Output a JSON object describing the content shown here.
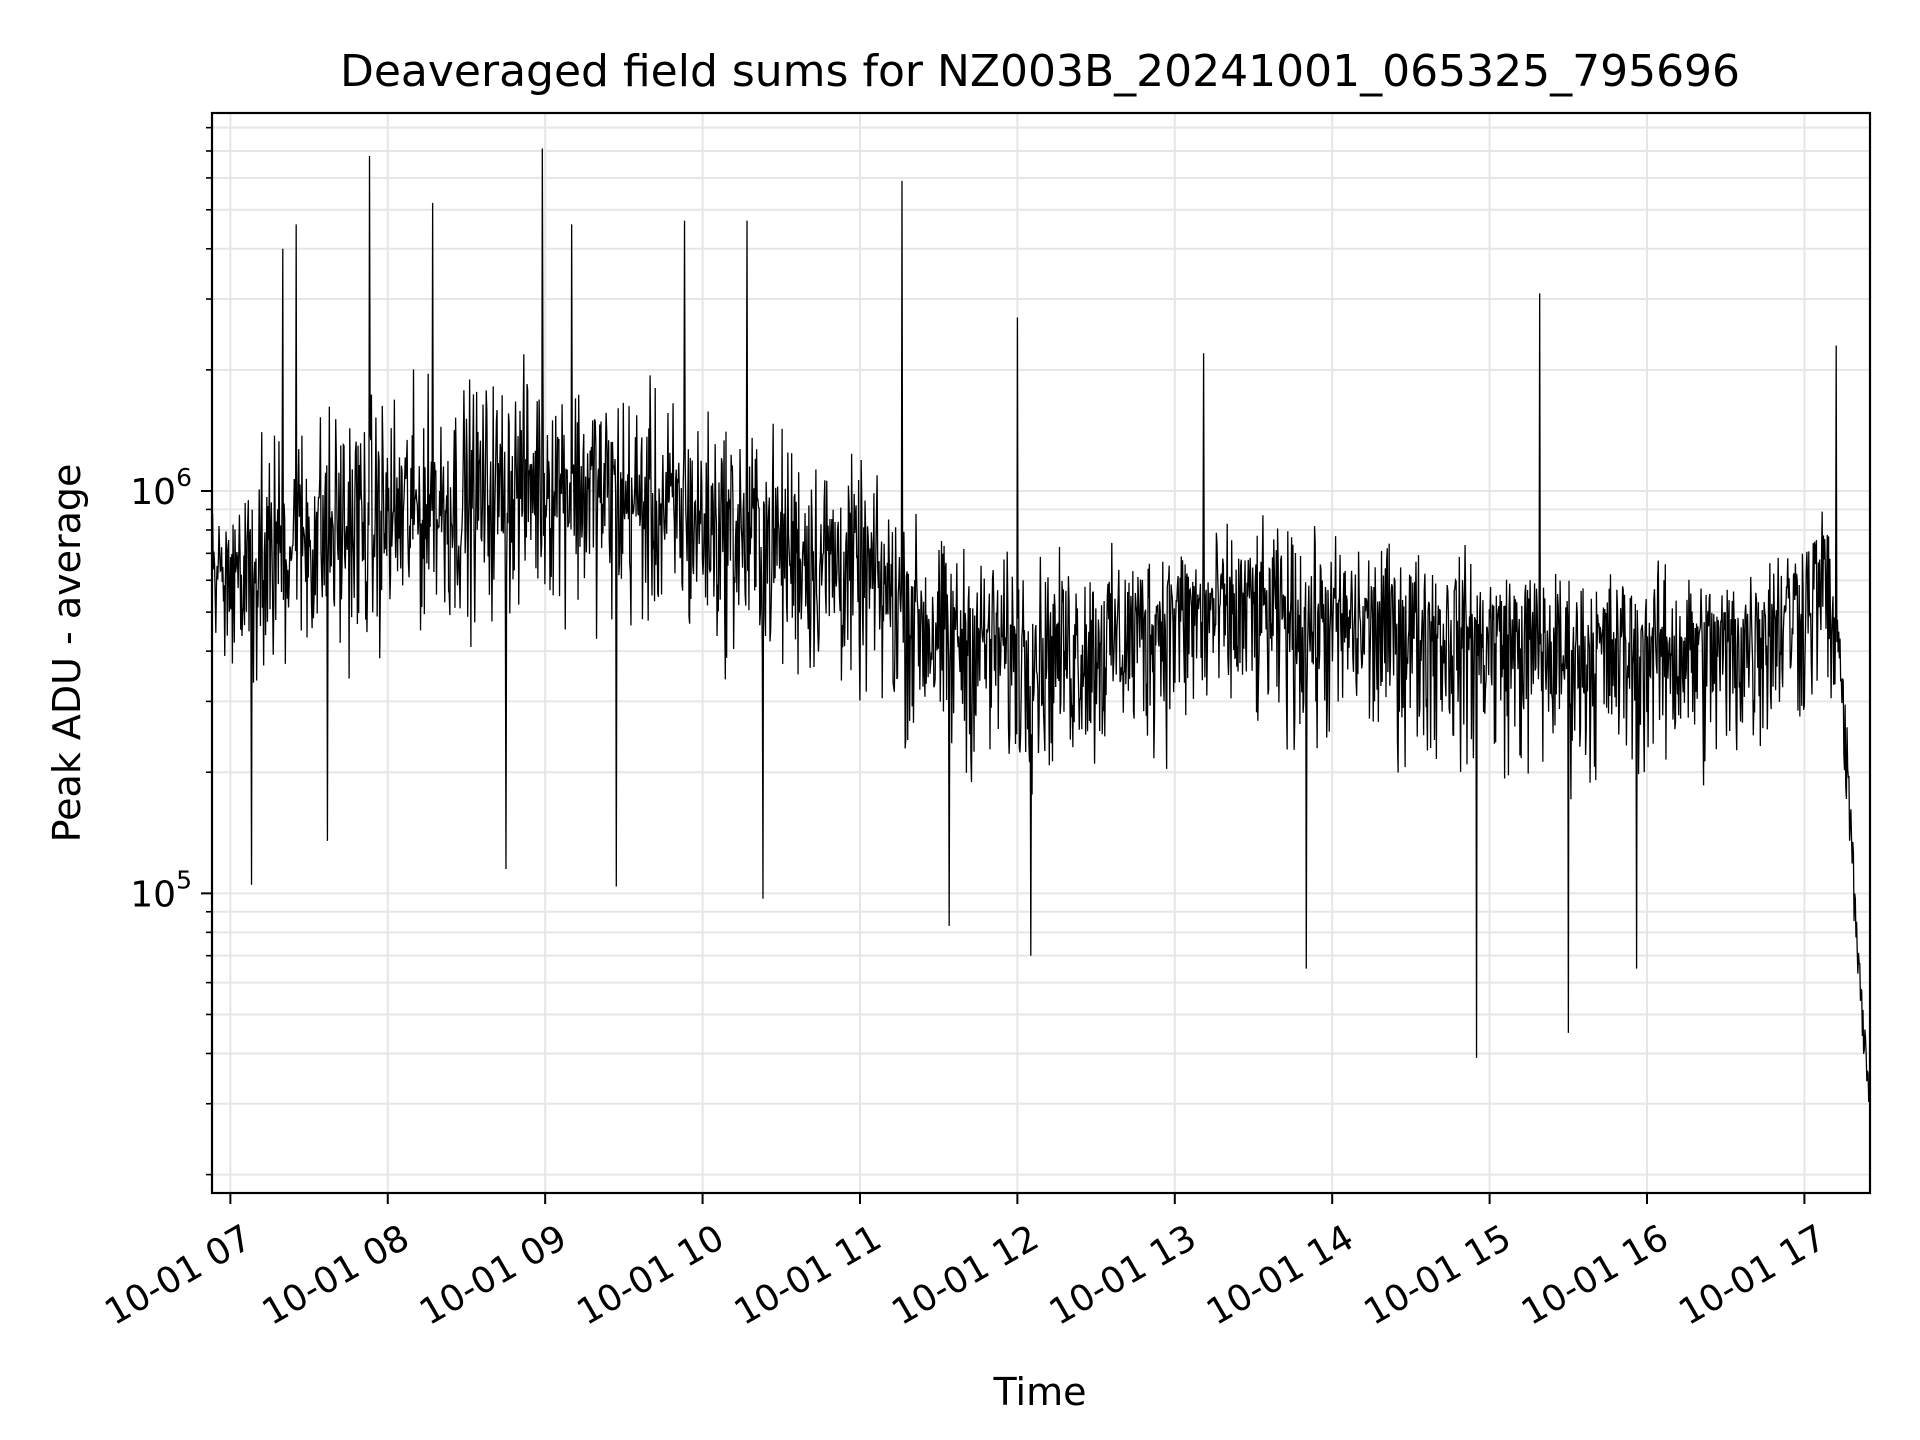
{
  "chart_data": {
    "type": "line",
    "title": "Deaveraged field sums for NZ003B_20241001_065325_795696",
    "xlabel": "Time",
    "ylabel": "Peak ADU - average",
    "yscale": "log",
    "ylim": [
      18000,
      8700000
    ],
    "xlim": [
      "2024-10-01 06:53",
      "2024-10-01 17:25"
    ],
    "x_ticks": [
      {
        "value": "2024-10-01 07:00",
        "label": "10-01 07"
      },
      {
        "value": "2024-10-01 08:00",
        "label": "10-01 08"
      },
      {
        "value": "2024-10-01 09:00",
        "label": "10-01 09"
      },
      {
        "value": "2024-10-01 10:00",
        "label": "10-01 10"
      },
      {
        "value": "2024-10-01 11:00",
        "label": "10-01 11"
      },
      {
        "value": "2024-10-01 12:00",
        "label": "10-01 12"
      },
      {
        "value": "2024-10-01 13:00",
        "label": "10-01 13"
      },
      {
        "value": "2024-10-01 14:00",
        "label": "10-01 14"
      },
      {
        "value": "2024-10-01 15:00",
        "label": "10-01 15"
      },
      {
        "value": "2024-10-01 16:00",
        "label": "10-01 16"
      },
      {
        "value": "2024-10-01 17:00",
        "label": "10-01 17"
      }
    ],
    "y_ticks": [
      {
        "value": 100000,
        "base": "10",
        "exponent": "5"
      },
      {
        "value": 1000000,
        "base": "10",
        "exponent": "6"
      }
    ],
    "grid": true,
    "color": "#000000",
    "series": [
      {
        "x": [
          "2024-10-01 06:53",
          "2024-10-01 07:15",
          "2024-10-01 07:40",
          "2024-10-01 08:00",
          "2024-10-01 08:30",
          "2024-10-01 09:00",
          "2024-10-01 09:30",
          "2024-10-01 10:00",
          "2024-10-01 10:30",
          "2024-10-01 11:00",
          "2024-10-01 11:30",
          "2024-10-01 12:00",
          "2024-10-01 12:30",
          "2024-10-01 13:00",
          "2024-10-01 13:30",
          "2024-10-01 14:00",
          "2024-10-01 14:30",
          "2024-10-01 15:00",
          "2024-10-01 15:30",
          "2024-10-01 16:00",
          "2024-10-01 16:30",
          "2024-10-01 17:00",
          "2024-10-01 17:08",
          "2024-10-01 17:15",
          "2024-10-01 17:20",
          "2024-10-01 17:25"
        ],
        "values": [
          600000,
          750000,
          800000,
          850000,
          950000,
          1100000,
          950000,
          850000,
          750000,
          650000,
          450000,
          420000,
          430000,
          500000,
          520000,
          480000,
          470000,
          440000,
          400000,
          420000,
          410000,
          550000,
          600000,
          300000,
          80000,
          28000
        ],
        "band_low": [
          300000,
          250000,
          280000,
          320000,
          350000,
          400000,
          350000,
          300000,
          260000,
          230000,
          150000,
          140000,
          150000,
          170000,
          180000,
          160000,
          160000,
          150000,
          140000,
          140000,
          140000,
          200000,
          250000,
          100000,
          40000,
          18000
        ],
        "band_high": [
          1200000,
          1800000,
          2200000,
          2300000,
          2400000,
          2600000,
          2400000,
          2000000,
          1800000,
          1400000,
          900000,
          800000,
          800000,
          900000,
          950000,
          900000,
          850000,
          800000,
          750000,
          750000,
          750000,
          950000,
          1200000,
          700000,
          100000,
          40000
        ]
      }
    ],
    "spikes": [
      {
        "x": "2024-10-01 07:20",
        "value": 4000000
      },
      {
        "x": "2024-10-01 07:25",
        "value": 4600000
      },
      {
        "x": "2024-10-01 07:53",
        "value": 6800000
      },
      {
        "x": "2024-10-01 08:17",
        "value": 5200000
      },
      {
        "x": "2024-10-01 08:59",
        "value": 7100000
      },
      {
        "x": "2024-10-01 09:10",
        "value": 4600000
      },
      {
        "x": "2024-10-01 09:53",
        "value": 4700000
      },
      {
        "x": "2024-10-01 10:17",
        "value": 4700000
      },
      {
        "x": "2024-10-01 11:16",
        "value": 5900000
      },
      {
        "x": "2024-10-01 12:00",
        "value": 2700000
      },
      {
        "x": "2024-10-01 13:11",
        "value": 2200000
      },
      {
        "x": "2024-10-01 15:19",
        "value": 3100000
      },
      {
        "x": "2024-10-01 17:12",
        "value": 2300000
      }
    ],
    "dips": [
      {
        "x": "2024-10-01 07:08",
        "value": 105000
      },
      {
        "x": "2024-10-01 07:37",
        "value": 135000
      },
      {
        "x": "2024-10-01 08:45",
        "value": 115000
      },
      {
        "x": "2024-10-01 09:27",
        "value": 104000
      },
      {
        "x": "2024-10-01 10:23",
        "value": 97000
      },
      {
        "x": "2024-10-01 11:34",
        "value": 83000
      },
      {
        "x": "2024-10-01 12:05",
        "value": 70000
      },
      {
        "x": "2024-10-01 13:50",
        "value": 65000
      },
      {
        "x": "2024-10-01 14:55",
        "value": 39000
      },
      {
        "x": "2024-10-01 15:30",
        "value": 45000
      },
      {
        "x": "2024-10-01 15:56",
        "value": 65000
      }
    ]
  }
}
